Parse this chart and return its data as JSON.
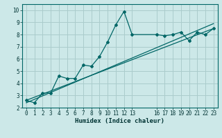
{
  "xlabel": "Humidex (Indice chaleur)",
  "bg_color": "#cce8e8",
  "grid_color": "#aacccc",
  "line_color": "#006666",
  "xlim": [
    -0.5,
    23.5
  ],
  "ylim": [
    2,
    10.5
  ],
  "xticks": [
    0,
    1,
    2,
    3,
    4,
    5,
    6,
    7,
    8,
    9,
    10,
    11,
    12,
    13,
    16,
    17,
    18,
    19,
    20,
    21,
    22,
    23
  ],
  "yticks": [
    2,
    3,
    4,
    5,
    6,
    7,
    8,
    9,
    10
  ],
  "series1_x": [
    0,
    1,
    2,
    3,
    4,
    5,
    6,
    7,
    8,
    9,
    10,
    11,
    12,
    13,
    16,
    17,
    18,
    19,
    20,
    21,
    22,
    23
  ],
  "series1_y": [
    2.6,
    2.4,
    3.2,
    3.2,
    4.6,
    4.4,
    4.4,
    5.5,
    5.4,
    6.2,
    7.4,
    8.8,
    9.9,
    8.0,
    8.0,
    7.9,
    8.0,
    8.2,
    7.5,
    8.2,
    8.0,
    8.5
  ],
  "series2_x": [
    0,
    23
  ],
  "series2_y": [
    2.6,
    8.5
  ],
  "series3_x": [
    0,
    23
  ],
  "series3_y": [
    2.4,
    8.9
  ]
}
